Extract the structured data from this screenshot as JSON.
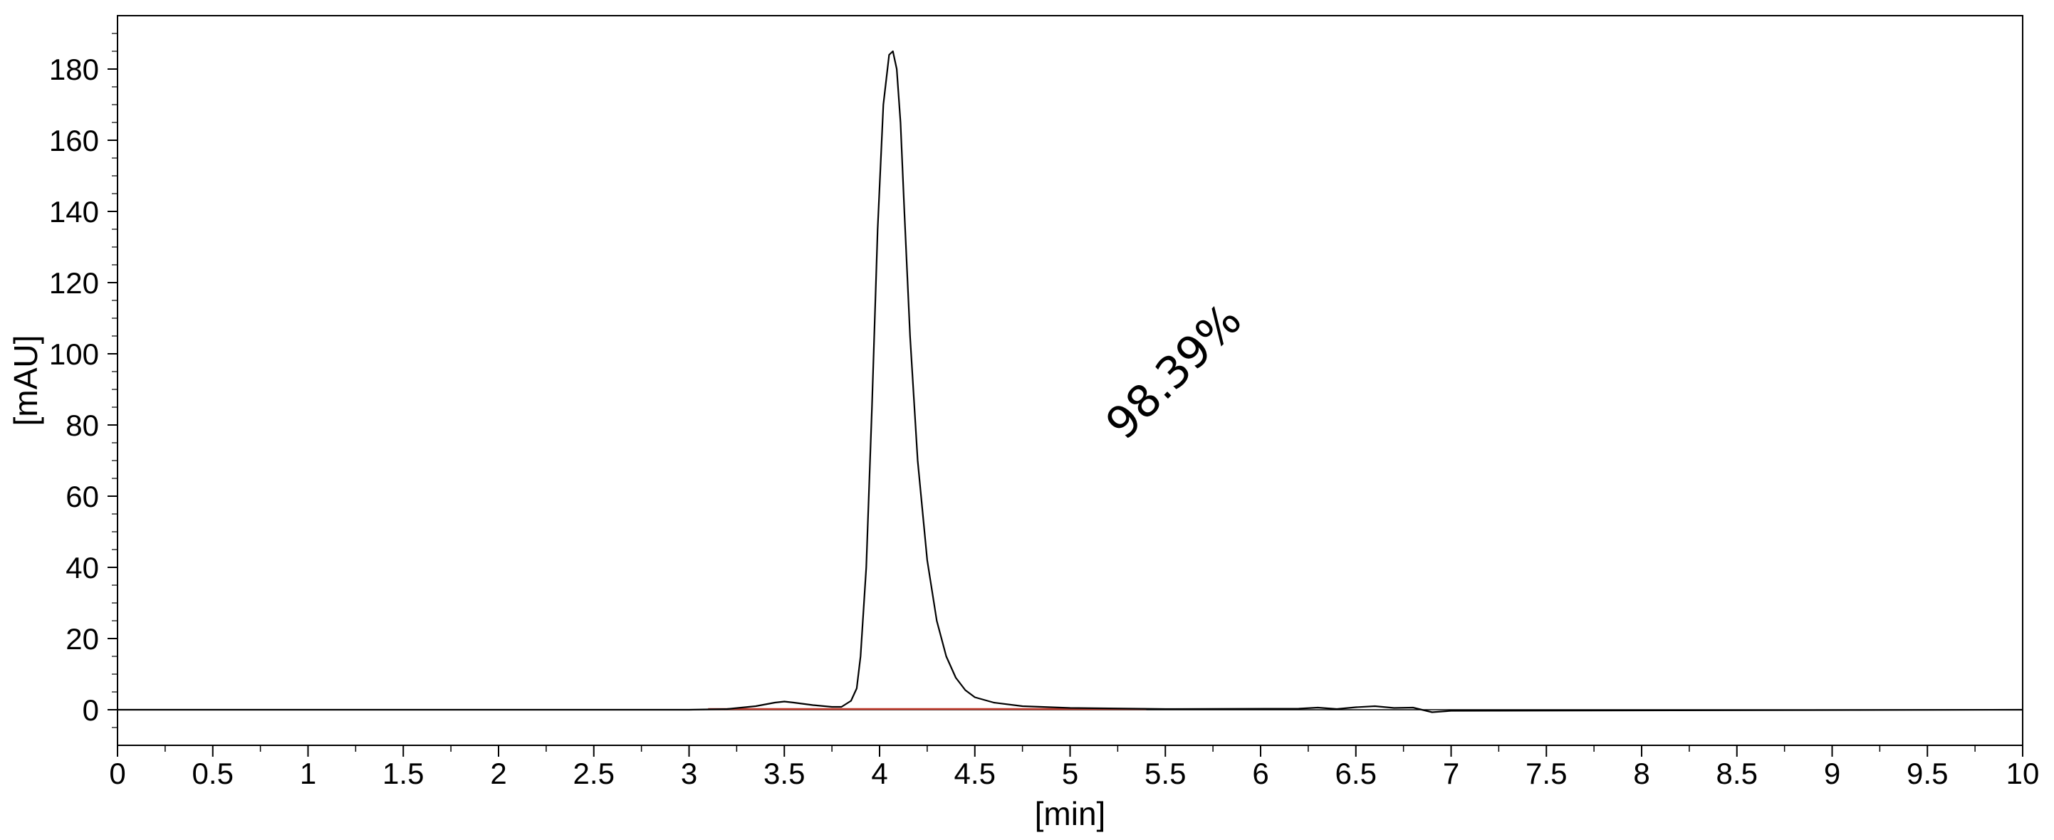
{
  "chart_data": {
    "type": "line",
    "title": "",
    "xlabel": "[min]",
    "ylabel": "[mAU]",
    "xlim": [
      0,
      10
    ],
    "ylim": [
      -10,
      195
    ],
    "x_ticks": [
      0,
      0.5,
      1,
      1.5,
      2,
      2.5,
      3,
      3.5,
      4,
      4.5,
      5,
      5.5,
      6,
      6.5,
      7,
      7.5,
      8,
      8.5,
      9,
      9.5,
      10
    ],
    "x_tick_labels": [
      "0",
      "0.5",
      "1",
      "1.5",
      "2",
      "2.5",
      "3",
      "3.5",
      "4",
      "4.5",
      "5",
      "5.5",
      "6",
      "6.5",
      "7",
      "7.5",
      "8",
      "8.5",
      "9",
      "9.5",
      "10"
    ],
    "y_ticks": [
      0,
      20,
      40,
      60,
      80,
      100,
      120,
      140,
      160,
      180
    ],
    "y_tick_labels": [
      "0",
      "20",
      "40",
      "60",
      "80",
      "100",
      "120",
      "140",
      "160",
      "180"
    ],
    "grid": false,
    "zero_line": true,
    "annotation": {
      "text": "98.39%",
      "x": 5.6,
      "y": 92,
      "rotation_deg": -45
    },
    "baseline_segments": [
      {
        "color": "#c0392b",
        "x": [
          3.1,
          5.4
        ],
        "y": [
          0,
          0
        ]
      }
    ],
    "series": [
      {
        "color": "#000000",
        "x": [
          0,
          3.0,
          3.2,
          3.35,
          3.45,
          3.5,
          3.55,
          3.65,
          3.75,
          3.8,
          3.85,
          3.88,
          3.9,
          3.93,
          3.96,
          3.99,
          4.02,
          4.05,
          4.07,
          4.09,
          4.11,
          4.13,
          4.16,
          4.2,
          4.25,
          4.3,
          4.35,
          4.4,
          4.45,
          4.5,
          4.6,
          4.75,
          5.0,
          5.5,
          6.2,
          6.3,
          6.4,
          6.5,
          6.6,
          6.7,
          6.8,
          6.9,
          7.0,
          10
        ],
        "y": [
          0,
          0,
          0.2,
          1.0,
          2.0,
          2.3,
          2.0,
          1.3,
          0.8,
          0.8,
          2.5,
          6,
          15,
          40,
          85,
          135,
          170,
          184,
          185,
          180,
          165,
          140,
          105,
          70,
          42,
          25,
          15,
          9,
          5.5,
          3.5,
          2,
          1.0,
          0.5,
          0.2,
          0.3,
          0.6,
          0.2,
          0.7,
          1.0,
          0.5,
          0.6,
          -0.7,
          -0.3,
          0
        ]
      }
    ]
  }
}
